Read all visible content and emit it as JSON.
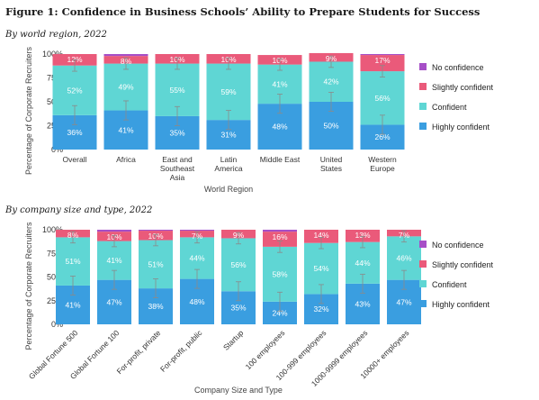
{
  "title": "Figure 1: Confidence in Business Schools’ Ability to Prepare Students for Success",
  "colors": {
    "No confidence": "#a64fc7",
    "Slightly confident": "#ea5a7a",
    "Confident": "#5fd6d4",
    "Highly confident": "#3a9ee0"
  },
  "chart_data": [
    {
      "type": "bar",
      "stacked": true,
      "subtitle": "By world region, 2022",
      "xlabel": "World Region",
      "ylabel": "Percentage of Corporate Recruiters",
      "ylim": [
        0,
        100
      ],
      "yticks": [
        "0%",
        "25%",
        "50%",
        "75%",
        "100%"
      ],
      "categories": [
        "Overall",
        "Africa",
        "East and Southeast Asia",
        "Latin America",
        "Middle East",
        "United States",
        "Western Europe"
      ],
      "series": [
        {
          "name": "Highly confident",
          "values": [
            36,
            41,
            35,
            31,
            48,
            50,
            26
          ]
        },
        {
          "name": "Confident",
          "values": [
            52,
            49,
            55,
            59,
            41,
            42,
            56
          ]
        },
        {
          "name": "Slightly confident",
          "values": [
            12,
            8,
            10,
            10,
            10,
            9,
            17
          ]
        },
        {
          "name": "No confidence",
          "values": [
            0,
            2,
            0,
            0,
            0,
            0,
            1
          ]
        }
      ],
      "legend": [
        "No confidence",
        "Slightly confident",
        "Confident",
        "Highly confident"
      ],
      "legend_position": "right",
      "error_bars": true
    },
    {
      "type": "bar",
      "stacked": true,
      "subtitle": "By company size and type, 2022",
      "xlabel": "Company Size and Type",
      "ylabel": "Percentage of Corporate Recruiters",
      "ylim": [
        0,
        100
      ],
      "yticks": [
        "0%",
        "25%",
        "50%",
        "75%",
        "100%"
      ],
      "categories": [
        "Global Fortune 500",
        "Global Fortune 100",
        "For-profit, private",
        "For-profit, public",
        "Startup",
        "100 employees",
        "100-999 employees",
        "1000-9999 employees",
        "10000+ employees"
      ],
      "series": [
        {
          "name": "Highly confident",
          "values": [
            41,
            47,
            38,
            48,
            35,
            24,
            32,
            43,
            47
          ]
        },
        {
          "name": "Confident",
          "values": [
            51,
            41,
            51,
            44,
            56,
            58,
            54,
            44,
            46
          ]
        },
        {
          "name": "Slightly confident",
          "values": [
            8,
            10,
            10,
            7,
            9,
            16,
            14,
            13,
            7
          ]
        },
        {
          "name": "No confidence",
          "values": [
            0,
            2,
            1,
            1,
            0,
            2,
            0,
            0,
            0
          ]
        }
      ],
      "legend": [
        "No confidence",
        "Slightly confident",
        "Confident",
        "Highly confident"
      ],
      "legend_position": "right",
      "error_bars": true
    }
  ]
}
